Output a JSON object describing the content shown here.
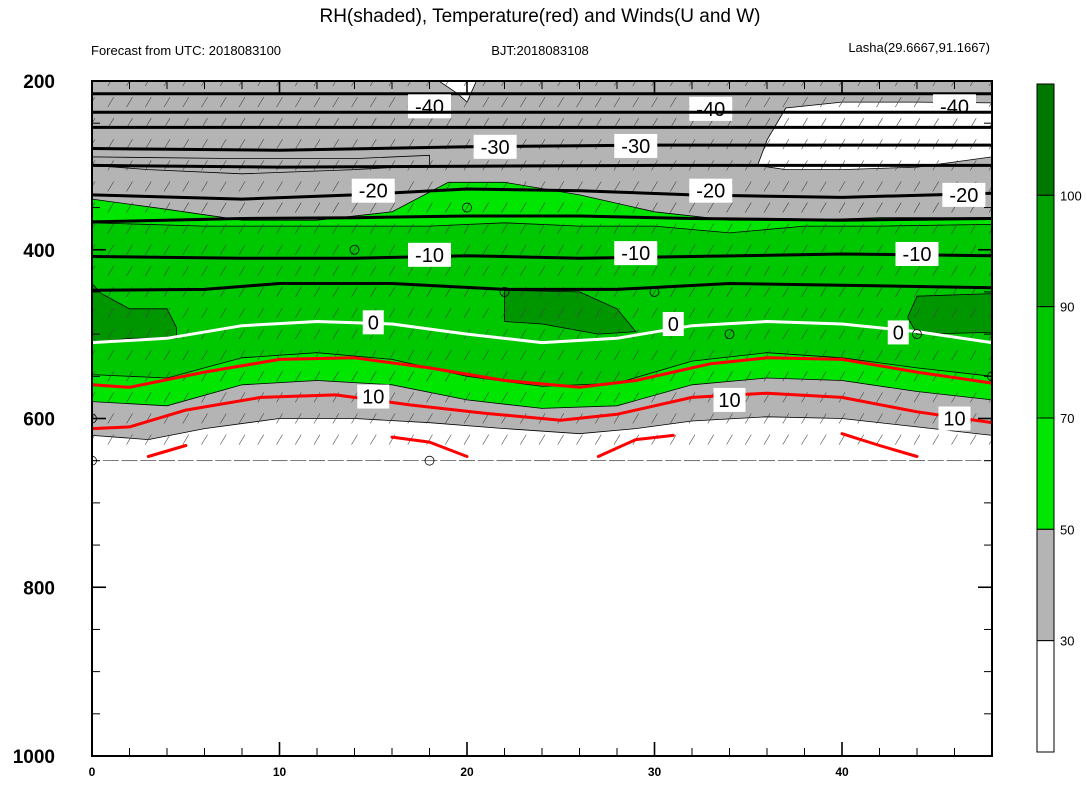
{
  "chart_data": {
    "type": "contour",
    "title": "RH(shaded), Temperature(red) and Winds(U and W)",
    "subtitle_left": "Forecast from UTC: 2018083100",
    "subtitle_center": "BJT:2018083108",
    "subtitle_right": "Lasha(29.6667,91.1667)",
    "xlim": [
      0,
      48
    ],
    "ylim": [
      1000,
      200
    ],
    "x_ticks": [
      "0",
      "10",
      "20",
      "30",
      "40"
    ],
    "x_tick_values": [
      0,
      10,
      20,
      30,
      40
    ],
    "y_ticks": [
      "200",
      "400",
      "600",
      "800",
      "1000"
    ],
    "y_tick_values": [
      200,
      400,
      600,
      800,
      1000
    ],
    "data_bottom_hPa": 650,
    "colorbar": {
      "levels": [
        "30",
        "50",
        "70",
        "90",
        "100"
      ],
      "level_values": [
        30,
        50,
        70,
        90,
        100
      ],
      "colors": [
        "#ffffff",
        "#b4b4b4",
        "#00e600",
        "#00c800",
        "#00a000",
        "#007800"
      ]
    },
    "rh_bands": [
      {
        "name": "grey",
        "color": "#b4b4b4",
        "top": [
          [
            0,
            200
          ],
          [
            48,
            200
          ]
        ],
        "bottom": [
          [
            0,
            620
          ],
          [
            3,
            625
          ],
          [
            6,
            612
          ],
          [
            10,
            600
          ],
          [
            14,
            600
          ],
          [
            18,
            605
          ],
          [
            22,
            612
          ],
          [
            26,
            618
          ],
          [
            29,
            612
          ],
          [
            32,
            603
          ],
          [
            36,
            598
          ],
          [
            40,
            600
          ],
          [
            44,
            610
          ],
          [
            48,
            620
          ]
        ]
      },
      {
        "name": "green-light",
        "color": "#00e600",
        "top": [
          [
            0,
            340
          ],
          [
            4,
            352
          ],
          [
            8,
            365
          ],
          [
            12,
            365
          ],
          [
            16,
            355
          ],
          [
            19,
            320
          ],
          [
            22,
            320
          ],
          [
            26,
            335
          ],
          [
            30,
            355
          ],
          [
            34,
            365
          ],
          [
            38,
            365
          ],
          [
            42,
            362
          ],
          [
            46,
            362
          ],
          [
            48,
            362
          ]
        ],
        "bottom": [
          [
            0,
            580
          ],
          [
            4,
            585
          ],
          [
            8,
            560
          ],
          [
            12,
            555
          ],
          [
            16,
            560
          ],
          [
            20,
            578
          ],
          [
            24,
            588
          ],
          [
            28,
            585
          ],
          [
            32,
            560
          ],
          [
            36,
            552
          ],
          [
            40,
            555
          ],
          [
            44,
            568
          ],
          [
            48,
            578
          ]
        ]
      },
      {
        "name": "green-mid",
        "color": "#00c800",
        "top": [
          [
            0,
            368
          ],
          [
            6,
            372
          ],
          [
            12,
            372
          ],
          [
            18,
            372
          ],
          [
            22,
            368
          ],
          [
            26,
            372
          ],
          [
            30,
            372
          ],
          [
            34,
            380
          ],
          [
            38,
            372
          ],
          [
            42,
            372
          ],
          [
            48,
            370
          ]
        ],
        "bottom": [
          [
            0,
            548
          ],
          [
            4,
            552
          ],
          [
            8,
            528
          ],
          [
            12,
            522
          ],
          [
            16,
            530
          ],
          [
            20,
            550
          ],
          [
            24,
            562
          ],
          [
            28,
            558
          ],
          [
            32,
            532
          ],
          [
            36,
            522
          ],
          [
            40,
            528
          ],
          [
            44,
            540
          ],
          [
            48,
            550
          ]
        ]
      }
    ],
    "rh_patches": [
      {
        "name": "dark-green-left",
        "color": "#009600",
        "points": [
          [
            0,
            440
          ],
          [
            0.5,
            452
          ],
          [
            2,
            470
          ],
          [
            4,
            470
          ],
          [
            4.5,
            492
          ],
          [
            4.5,
            505
          ],
          [
            2,
            505
          ],
          [
            0,
            510
          ]
        ]
      },
      {
        "name": "dark-green-mid",
        "color": "#009600",
        "points": [
          [
            22,
            448
          ],
          [
            26,
            450
          ],
          [
            28,
            470
          ],
          [
            29,
            497
          ],
          [
            27,
            500
          ],
          [
            24,
            488
          ],
          [
            22,
            485
          ]
        ]
      },
      {
        "name": "dark-green-right",
        "color": "#009600",
        "points": [
          [
            44,
            455
          ],
          [
            48,
            452
          ],
          [
            48,
            498
          ],
          [
            44,
            500
          ],
          [
            43.5,
            480
          ]
        ]
      },
      {
        "name": "grey-upper-left",
        "color": "#b4b4b4",
        "points": [
          [
            0,
            290
          ],
          [
            8,
            292
          ],
          [
            14,
            292
          ],
          [
            18,
            288
          ],
          [
            18,
            300
          ],
          [
            14,
            305
          ],
          [
            8,
            310
          ],
          [
            3,
            305
          ],
          [
            0,
            300
          ]
        ]
      },
      {
        "name": "white-top-right",
        "color": "#ffffff",
        "points": [
          [
            35.5,
            300
          ],
          [
            36,
            270
          ],
          [
            37,
            232
          ],
          [
            40,
            225
          ],
          [
            44,
            225
          ],
          [
            48,
            226
          ],
          [
            48,
            290
          ],
          [
            44,
            302
          ],
          [
            40,
            305
          ],
          [
            37,
            305
          ]
        ]
      },
      {
        "name": "white-top-mid",
        "color": "#ffffff",
        "points": [
          [
            18.5,
            200
          ],
          [
            20.5,
            200
          ],
          [
            20,
            225
          ],
          [
            19.5,
            215
          ]
        ]
      }
    ],
    "temp_contours": [
      {
        "value": -40,
        "color": "#000000",
        "levels_hPa": [
          [
            0,
            215
          ],
          [
            48,
            215
          ]
        ],
        "labels": [
          {
            "text": "-40",
            "x": 18,
            "y": 230
          },
          {
            "text": "-40",
            "x": 33,
            "y": 233
          },
          {
            "text": "-40",
            "x": 46,
            "y": 230
          }
        ]
      },
      {
        "value": -40,
        "color": "#000000",
        "levels_hPa": [
          [
            0,
            237
          ],
          [
            48,
            237
          ]
        ]
      },
      {
        "value": -40,
        "color": "#000000",
        "levels_hPa": [
          [
            0,
            255
          ],
          [
            48,
            255
          ]
        ]
      },
      {
        "value": -30,
        "color": "#000000",
        "levels_hPa": [
          [
            0,
            280
          ],
          [
            10,
            282
          ],
          [
            20,
            278
          ],
          [
            30,
            276
          ],
          [
            40,
            276
          ],
          [
            48,
            276
          ]
        ],
        "labels": [
          {
            "text": "-30",
            "x": 21.5,
            "y": 278
          },
          {
            "text": "-30",
            "x": 29,
            "y": 277
          }
        ]
      },
      {
        "value": -30,
        "color": "#000000",
        "levels_hPa": [
          [
            0,
            300
          ],
          [
            10,
            302
          ],
          [
            20,
            301
          ],
          [
            30,
            300
          ],
          [
            40,
            300
          ],
          [
            48,
            300
          ]
        ]
      },
      {
        "value": -20,
        "color": "#000000",
        "levels_hPa": [
          [
            0,
            335
          ],
          [
            8,
            340
          ],
          [
            14,
            335
          ],
          [
            20,
            328
          ],
          [
            26,
            330
          ],
          [
            32,
            335
          ],
          [
            40,
            338
          ],
          [
            48,
            333
          ]
        ],
        "labels": [
          {
            "text": "-20",
            "x": 15,
            "y": 330
          },
          {
            "text": "-20",
            "x": 33,
            "y": 330
          },
          {
            "text": "-20",
            "x": 46.5,
            "y": 335
          }
        ]
      },
      {
        "value": -20,
        "color": "#000000",
        "levels_hPa": [
          [
            0,
            367
          ],
          [
            8,
            363
          ],
          [
            14,
            362
          ],
          [
            20,
            360
          ],
          [
            26,
            360
          ],
          [
            32,
            363
          ],
          [
            40,
            365
          ],
          [
            48,
            363
          ]
        ]
      },
      {
        "value": -10,
        "color": "#000000",
        "levels_hPa": [
          [
            0,
            408
          ],
          [
            8,
            410
          ],
          [
            14,
            410
          ],
          [
            20,
            407
          ],
          [
            26,
            410
          ],
          [
            32,
            408
          ],
          [
            40,
            405
          ],
          [
            48,
            407
          ]
        ],
        "labels": [
          {
            "text": "-10",
            "x": 18,
            "y": 406
          },
          {
            "text": "-10",
            "x": 29,
            "y": 404
          },
          {
            "text": "-10",
            "x": 44,
            "y": 405
          }
        ]
      },
      {
        "value": -10,
        "color": "#000000",
        "levels_hPa": [
          [
            0,
            448
          ],
          [
            6,
            447
          ],
          [
            10,
            440
          ],
          [
            16,
            440
          ],
          [
            22,
            447
          ],
          [
            28,
            447
          ],
          [
            34,
            440
          ],
          [
            40,
            442
          ],
          [
            48,
            445
          ]
        ]
      },
      {
        "value": 0,
        "color": "#ffffff",
        "levels_hPa": [
          [
            0,
            510
          ],
          [
            4,
            505
          ],
          [
            8,
            490
          ],
          [
            12,
            485
          ],
          [
            16,
            488
          ],
          [
            20,
            500
          ],
          [
            24,
            510
          ],
          [
            28,
            505
          ],
          [
            32,
            490
          ],
          [
            36,
            485
          ],
          [
            40,
            488
          ],
          [
            44,
            497
          ],
          [
            48,
            510
          ]
        ],
        "labels": [
          {
            "text": "0",
            "x": 15,
            "y": 486
          },
          {
            "text": "0",
            "x": 31,
            "y": 488
          },
          {
            "text": "0",
            "x": 43,
            "y": 498
          }
        ]
      },
      {
        "value": 10,
        "color": "#ff0000",
        "levels_hPa": [
          [
            0,
            560
          ],
          [
            2,
            563
          ],
          [
            6,
            545
          ],
          [
            10,
            530
          ],
          [
            14,
            528
          ],
          [
            18,
            540
          ],
          [
            22,
            555
          ],
          [
            26,
            563
          ],
          [
            29,
            555
          ],
          [
            33,
            535
          ],
          [
            36,
            528
          ],
          [
            40,
            530
          ],
          [
            44,
            545
          ],
          [
            48,
            558
          ]
        ]
      },
      {
        "value": 10,
        "color": "#ff0000",
        "levels_hPa": [
          [
            0,
            612
          ],
          [
            2,
            610
          ],
          [
            5,
            590
          ],
          [
            9,
            575
          ],
          [
            13,
            572
          ],
          [
            17,
            584
          ],
          [
            21,
            594
          ],
          [
            25,
            602
          ],
          [
            28,
            595
          ],
          [
            32,
            575
          ],
          [
            36,
            570
          ],
          [
            40,
            575
          ],
          [
            44,
            592
          ],
          [
            48,
            605
          ]
        ],
        "labels": [
          {
            "text": "10",
            "x": 15,
            "y": 574
          },
          {
            "text": "10",
            "x": 34,
            "y": 578
          },
          {
            "text": "10",
            "x": 46,
            "y": 600
          }
        ]
      },
      {
        "value": 10,
        "color": "#ff0000",
        "levels_hPa": [
          [
            3,
            645
          ],
          [
            5,
            632
          ]
        ]
      },
      {
        "value": 10,
        "color": "#ff0000",
        "levels_hPa": [
          [
            16,
            622
          ],
          [
            18,
            628
          ],
          [
            20,
            645
          ]
        ]
      },
      {
        "value": 10,
        "color": "#ff0000",
        "levels_hPa": [
          [
            27,
            645
          ],
          [
            29,
            625
          ],
          [
            31,
            620
          ]
        ]
      },
      {
        "value": 10,
        "color": "#ff0000",
        "levels_hPa": [
          [
            40,
            618
          ],
          [
            42,
            632
          ],
          [
            44,
            645
          ]
        ]
      }
    ],
    "wind_levels_hPa": [
      200,
      225,
      250,
      275,
      300,
      325,
      350,
      375,
      400,
      425,
      450,
      475,
      500,
      525,
      550,
      575,
      600,
      625,
      650
    ],
    "calm_circles": [
      [
        0,
        650
      ],
      [
        18,
        650
      ],
      [
        14,
        400
      ],
      [
        20,
        350
      ],
      [
        22,
        450
      ],
      [
        30,
        450
      ],
      [
        34,
        500
      ],
      [
        44,
        500
      ],
      [
        48,
        550
      ],
      [
        0,
        600
      ]
    ]
  }
}
